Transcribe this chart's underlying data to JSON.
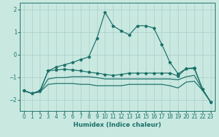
{
  "title": "",
  "xlabel": "Humidex (Indice chaleur)",
  "bg_color": "#c8e8e0",
  "line_color": "#1a7068",
  "grid_color": "#b0d0cc",
  "x": [
    0,
    1,
    2,
    3,
    4,
    5,
    6,
    7,
    8,
    9,
    10,
    11,
    12,
    13,
    14,
    15,
    16,
    17,
    18,
    19,
    20,
    21,
    22,
    23
  ],
  "line1": [
    -1.6,
    -1.72,
    -1.6,
    -0.72,
    -0.55,
    -0.45,
    -0.35,
    -0.22,
    -0.1,
    0.72,
    1.88,
    1.28,
    1.05,
    0.88,
    1.28,
    1.28,
    1.18,
    0.45,
    -0.35,
    -0.85,
    -0.62,
    -0.62,
    -1.52,
    -2.1
  ],
  "line2": [
    -1.6,
    -1.72,
    -1.62,
    -0.72,
    -0.68,
    -0.65,
    -0.68,
    -0.72,
    -0.78,
    -0.82,
    -0.88,
    -0.92,
    -0.88,
    -0.82,
    -0.82,
    -0.82,
    -0.82,
    -0.82,
    -0.82,
    -0.95,
    -0.62,
    -0.58,
    -1.52,
    -2.1
  ],
  "line3": [
    -1.6,
    -1.72,
    -1.65,
    -1.08,
    -1.02,
    -1.02,
    -0.98,
    -0.98,
    -0.98,
    -1.02,
    -1.08,
    -1.08,
    -1.08,
    -1.08,
    -1.08,
    -1.08,
    -1.08,
    -1.08,
    -1.08,
    -1.12,
    -0.98,
    -0.92,
    -1.55,
    -2.1
  ],
  "line4": [
    -1.6,
    -1.72,
    -1.65,
    -1.32,
    -1.28,
    -1.28,
    -1.28,
    -1.32,
    -1.32,
    -1.38,
    -1.38,
    -1.38,
    -1.38,
    -1.32,
    -1.32,
    -1.32,
    -1.32,
    -1.32,
    -1.38,
    -1.48,
    -1.22,
    -1.18,
    -1.58,
    -2.1
  ],
  "ylim": [
    -2.5,
    2.3
  ],
  "yticks": [
    -2,
    -1,
    0,
    1,
    2
  ],
  "xlim": [
    -0.5,
    23.5
  ],
  "tick_fontsize": 5.5,
  "xlabel_fontsize": 6.5,
  "lw": 0.9,
  "ms": 3.0
}
